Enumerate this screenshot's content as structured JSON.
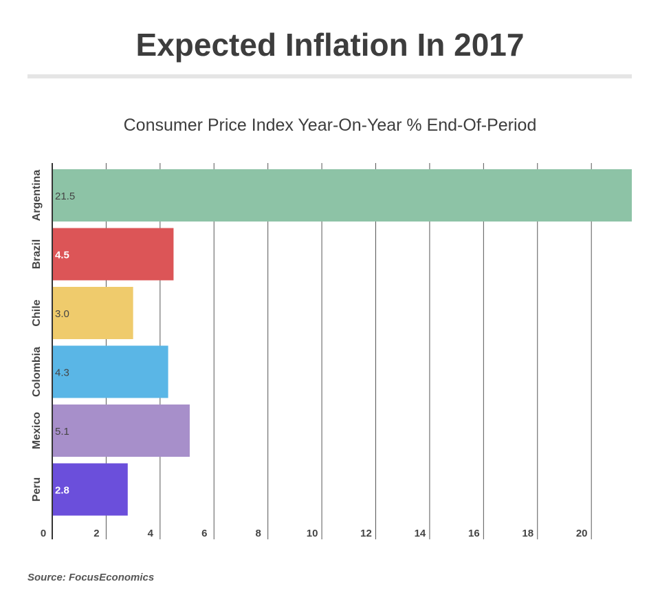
{
  "title": "Expected Inflation In 2017",
  "subtitle": "Consumer Price Index Year-On-Year % End-Of-Period",
  "source": "Source: FocusEconomics",
  "chart_data": {
    "type": "bar",
    "orientation": "horizontal",
    "categories": [
      "Argentina",
      "Brazil",
      "Chile",
      "Colombia",
      "Mexico",
      "Peru"
    ],
    "values": [
      21.5,
      4.5,
      3.0,
      4.3,
      5.1,
      2.8
    ],
    "data_labels": [
      "21.5",
      "4.5",
      "3.0",
      "4.3",
      "5.1",
      "2.8"
    ],
    "colors": [
      "#8dc3a6",
      "#dc5557",
      "#efcb6c",
      "#5ab6e6",
      "#a78fca",
      "#6b4fdb"
    ],
    "label_colors": [
      "#444444",
      "#ffffff",
      "#444444",
      "#444444",
      "#444444",
      "#ffffff"
    ],
    "label_bold": [
      false,
      true,
      false,
      false,
      false,
      true
    ],
    "x_ticks": [
      0,
      2,
      4,
      6,
      8,
      10,
      12,
      14,
      16,
      18,
      20
    ],
    "xlim": [
      0,
      21.5
    ],
    "grid": true
  }
}
